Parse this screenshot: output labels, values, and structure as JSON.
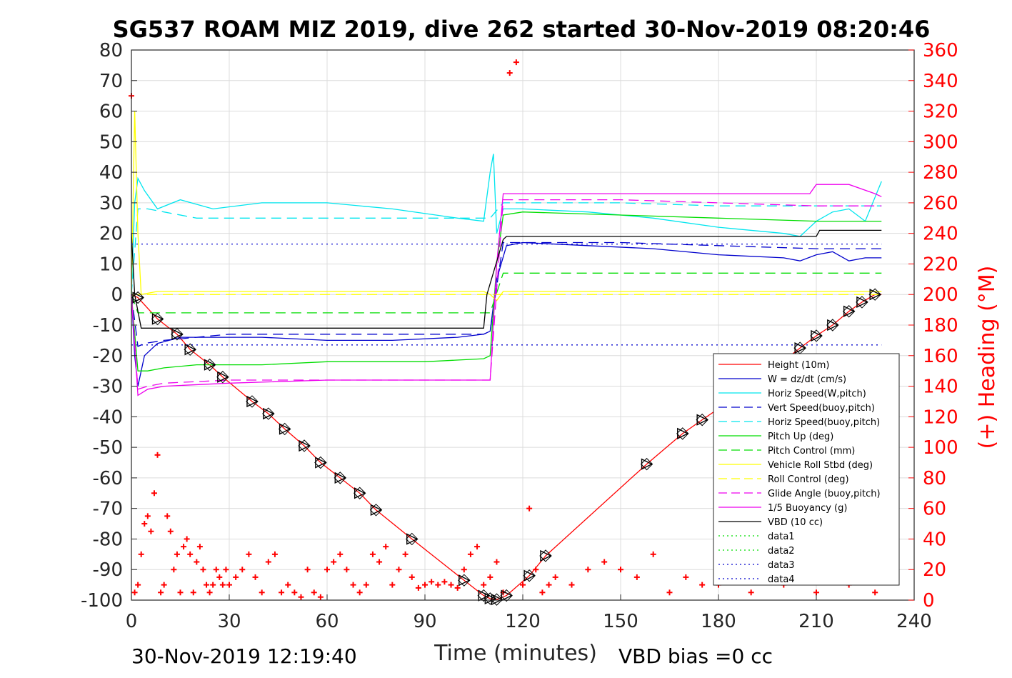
{
  "chart_data": {
    "type": "line",
    "title": "SG537 ROAM MIZ 2019, dive 262 started 30-Nov-2019 08:20:46",
    "xlabel": "Time (minutes)",
    "ylabel": "",
    "y2label": "(+) Heading (°M)",
    "xlim": [
      0,
      240
    ],
    "ylim": [
      -100,
      80
    ],
    "y2lim": [
      0,
      360
    ],
    "xticks": [
      0,
      30,
      60,
      90,
      120,
      150,
      180,
      210,
      240
    ],
    "yticks": [
      80,
      70,
      60,
      50,
      40,
      30,
      20,
      10,
      0,
      -10,
      -20,
      -30,
      -40,
      -50,
      -60,
      -70,
      -80,
      -90,
      -100
    ],
    "y2ticks": [
      360,
      340,
      320,
      300,
      280,
      260,
      240,
      220,
      200,
      180,
      160,
      140,
      120,
      100,
      80,
      60,
      40,
      20,
      0
    ],
    "grid": true,
    "legend_position": "lower-right",
    "footer_left": "30-Nov-2019 12:19:40",
    "footer_right": "VBD bias =0 cc",
    "series": [
      {
        "name": "Height (10m)",
        "color": "#ff0000",
        "style": "solid",
        "x": [
          0,
          2,
          8,
          14,
          18,
          24,
          28,
          37,
          42,
          47,
          53,
          58,
          64,
          70,
          75,
          86,
          102,
          108,
          110,
          112,
          115,
          122,
          127,
          158,
          169,
          175,
          190,
          205,
          210,
          215,
          220,
          224,
          228,
          230
        ],
        "y": [
          0,
          -1,
          -8,
          -13,
          -18,
          -23,
          -27,
          -35,
          -39,
          -44,
          -49.5,
          -55,
          -60,
          -65,
          -70.5,
          -80,
          -93.5,
          -98.5,
          -99.5,
          -99.8,
          -98.5,
          -92,
          -85.5,
          -55.5,
          -45.5,
          -41,
          -30,
          -17.5,
          -13.5,
          -10,
          -5.5,
          -2.5,
          0,
          0
        ]
      },
      {
        "name": "W = dz/dt (cm/s)",
        "color": "#0000cc",
        "style": "solid",
        "x": [
          0,
          1,
          2,
          4,
          8,
          15,
          25,
          40,
          60,
          80,
          100,
          108,
          110,
          112,
          115,
          120,
          140,
          160,
          180,
          200,
          205,
          210,
          215,
          220,
          225,
          230
        ],
        "y": [
          0,
          -20,
          -30,
          -20,
          -16,
          -14,
          -14,
          -14,
          -15,
          -15,
          -14,
          -13,
          -12,
          5,
          16,
          17,
          16,
          15,
          13,
          12,
          11,
          13,
          14,
          11,
          12,
          12
        ]
      },
      {
        "name": "Horiz Speed(W,pitch)",
        "color": "#00e5ee",
        "style": "solid",
        "x": [
          0,
          1,
          2,
          4,
          8,
          15,
          25,
          40,
          60,
          80,
          100,
          108,
          110,
          111,
          112,
          114,
          120,
          140,
          160,
          180,
          200,
          205,
          210,
          215,
          220,
          225,
          230
        ],
        "y": [
          0,
          30,
          38,
          34,
          28,
          31,
          28,
          30,
          30,
          28,
          25,
          24,
          40,
          46,
          20,
          28,
          28,
          27,
          25,
          22,
          20,
          19,
          24,
          27,
          28,
          24,
          37
        ]
      },
      {
        "name": "Vert Speed(buoy,pitch)",
        "color": "#0000cc",
        "style": "dashed",
        "x": [
          0,
          2,
          4,
          10,
          30,
          60,
          90,
          108,
          110,
          114,
          120,
          150,
          180,
          210,
          230
        ],
        "y": [
          0,
          -17,
          -16,
          -15,
          -13,
          -13,
          -13,
          -13,
          -12,
          17,
          17,
          17,
          16,
          15,
          15
        ]
      },
      {
        "name": "Horiz Speed(buoy,pitch)",
        "color": "#00e5ee",
        "style": "dashed",
        "x": [
          0,
          2,
          5,
          10,
          20,
          40,
          60,
          90,
          108,
          110,
          114,
          120,
          150,
          180,
          210,
          230
        ],
        "y": [
          0,
          28,
          28,
          27,
          25,
          25,
          25,
          25,
          25,
          25,
          30,
          30,
          30,
          29,
          29,
          29
        ]
      },
      {
        "name": "Pitch Up (deg)",
        "color": "#00dd00",
        "style": "solid",
        "x": [
          0,
          2,
          5,
          10,
          20,
          40,
          60,
          90,
          108,
          110,
          112,
          114,
          120,
          150,
          180,
          210,
          230
        ],
        "y": [
          0,
          -25,
          -25,
          -24,
          -23,
          -23,
          -22,
          -22,
          -21,
          -20,
          10,
          26,
          27,
          26,
          25,
          24,
          24
        ]
      },
      {
        "name": "Pitch Control (mm)",
        "color": "#00dd00",
        "style": "dashed",
        "x": [
          0,
          2,
          5,
          30,
          60,
          90,
          108,
          110,
          114,
          120,
          150,
          180,
          210,
          230
        ],
        "y": [
          0,
          -6,
          -6,
          -6,
          -6,
          -6,
          -6,
          -6,
          7,
          7,
          7,
          7,
          7,
          7
        ]
      },
      {
        "name": "Vehicle Roll Stbd (deg)",
        "color": "#ffff00",
        "style": "solid",
        "x": [
          0,
          1,
          2,
          3,
          8,
          20,
          40,
          60,
          80,
          100,
          108,
          110,
          112,
          114,
          120,
          140,
          160,
          180,
          200,
          220,
          230
        ],
        "y": [
          0,
          60,
          20,
          0,
          1,
          1,
          1,
          1,
          1,
          1,
          1,
          0,
          -2,
          1,
          1,
          1,
          1,
          1,
          1,
          1,
          1
        ]
      },
      {
        "name": "Roll Control (deg)",
        "color": "#ffff00",
        "style": "dashed",
        "x": [
          0,
          230
        ],
        "y": [
          0,
          0
        ]
      },
      {
        "name": "Glide Angle (buoy,pitch)",
        "color": "#ee00ee",
        "style": "dashed",
        "x": [
          0,
          2,
          5,
          10,
          30,
          60,
          90,
          108,
          110,
          114,
          120,
          150,
          180,
          210,
          230
        ],
        "y": [
          0,
          -31,
          -30,
          -29,
          -28,
          -28,
          -28,
          -28,
          -28,
          31,
          31,
          31,
          30,
          29,
          29
        ]
      },
      {
        "name": "1/5 Buoyancy (g)",
        "color": "#ee00ee",
        "style": "solid",
        "x": [
          0,
          2,
          5,
          10,
          30,
          60,
          90,
          108,
          110,
          112,
          114,
          120,
          150,
          180,
          200,
          208,
          210,
          220,
          228,
          230
        ],
        "y": [
          0,
          -33,
          -31,
          -30,
          -29,
          -28,
          -28,
          -28,
          -28,
          10,
          33,
          33,
          33,
          33,
          33,
          33,
          36,
          36,
          33,
          32
        ]
      },
      {
        "name": "VBD (10 cc)",
        "color": "#000000",
        "style": "solid",
        "x": [
          0,
          1,
          3,
          60,
          108,
          109,
          114,
          115,
          150,
          210,
          211,
          230
        ],
        "y": [
          20,
          0,
          -11,
          -11,
          -11,
          0,
          18,
          19,
          19,
          19,
          21,
          21
        ]
      },
      {
        "name": "data1",
        "color": "#00dd00",
        "style": "dotted",
        "x": [],
        "y": []
      },
      {
        "name": "data2",
        "color": "#00dd00",
        "style": "dotted",
        "x": [],
        "y": []
      },
      {
        "name": "data3",
        "color": "#0000cc",
        "style": "dotted",
        "x": [
          0,
          230
        ],
        "y": [
          16.5,
          16.5
        ]
      },
      {
        "name": "data4",
        "color": "#0000cc",
        "style": "dotted",
        "x": [
          0,
          230
        ],
        "y": [
          -16.5,
          -16.5
        ]
      }
    ],
    "heading": {
      "name": "(+) Heading (°M)",
      "color": "#ff0000",
      "marker": "+",
      "x": [
        0,
        1,
        2,
        3,
        4,
        5,
        6,
        7,
        8,
        9,
        10,
        11,
        12,
        13,
        14,
        15,
        16,
        17,
        18,
        19,
        20,
        21,
        22,
        23,
        24,
        25,
        26,
        27,
        28,
        29,
        30,
        32,
        34,
        36,
        38,
        40,
        42,
        44,
        46,
        48,
        50,
        52,
        54,
        56,
        58,
        60,
        62,
        64,
        66,
        68,
        70,
        72,
        74,
        76,
        78,
        80,
        82,
        84,
        86,
        88,
        90,
        92,
        94,
        96,
        98,
        100,
        102,
        104,
        106,
        108,
        110,
        112,
        114,
        116,
        118,
        120,
        122,
        124,
        126,
        128,
        130,
        135,
        140,
        145,
        150,
        155,
        160,
        165,
        170,
        175,
        180,
        185,
        190,
        195,
        200,
        205,
        210,
        215,
        220,
        225,
        228
      ],
      "y": [
        330,
        5,
        10,
        30,
        50,
        55,
        45,
        70,
        95,
        5,
        10,
        55,
        45,
        20,
        30,
        5,
        35,
        40,
        30,
        5,
        25,
        35,
        20,
        10,
        5,
        10,
        20,
        15,
        10,
        20,
        10,
        15,
        20,
        30,
        15,
        5,
        25,
        30,
        5,
        10,
        5,
        2,
        20,
        5,
        2,
        20,
        25,
        30,
        20,
        10,
        5,
        10,
        30,
        25,
        35,
        10,
        20,
        30,
        15,
        8,
        10,
        12,
        10,
        12,
        10,
        8,
        20,
        30,
        35,
        10,
        15,
        25,
        5,
        345,
        352,
        10,
        60,
        20,
        5,
        10,
        15,
        10,
        20,
        25,
        20,
        15,
        30,
        5,
        15,
        10,
        10,
        20,
        5,
        15,
        10,
        20,
        5,
        30,
        10,
        15,
        5
      ]
    },
    "height_markers_x": [
      2,
      8,
      14,
      18,
      24,
      28,
      37,
      42,
      47,
      53,
      58,
      64,
      70,
      75,
      86,
      102,
      108,
      110,
      112,
      115,
      122,
      127,
      158,
      169,
      175,
      205,
      210,
      215,
      220,
      224,
      228
    ]
  }
}
